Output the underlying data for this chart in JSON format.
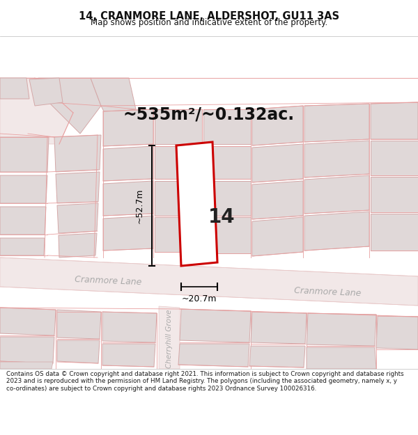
{
  "title": "14, CRANMORE LANE, ALDERSHOT, GU11 3AS",
  "subtitle": "Map shows position and indicative extent of the property.",
  "area_text": "~535m²/~0.132ac.",
  "width_label": "~20.7m",
  "height_label": "~52.7m",
  "plot_number": "14",
  "road_label_left": "Cranmore Lane",
  "road_label_right": "Cranmore Lane",
  "road_label_vert": "Cherryhill Grove",
  "footer_text": "Contains OS data © Crown copyright and database right 2021. This information is subject to Crown copyright and database rights 2023 and is reproduced with the permission of HM Land Registry. The polygons (including the associated geometry, namely x, y co-ordinates) are subject to Crown copyright and database rights 2023 Ordnance Survey 100026316.",
  "map_bg": "#f7f4f4",
  "road_fill": "#f2e8e8",
  "road_edge": "#e8c8c8",
  "building_fill": "#e0d8d8",
  "building_edge": "#d4a8a8",
  "pink_line": "#e8a0a0",
  "plot_edge": "#cc0000",
  "plot_fill": "#ffffff",
  "header_bg": "#ffffff",
  "footer_bg": "#ffffff",
  "title_color": "#111111",
  "dim_color": "#000000",
  "road_text_color": "#aaaaaa",
  "area_text_color": "#111111"
}
